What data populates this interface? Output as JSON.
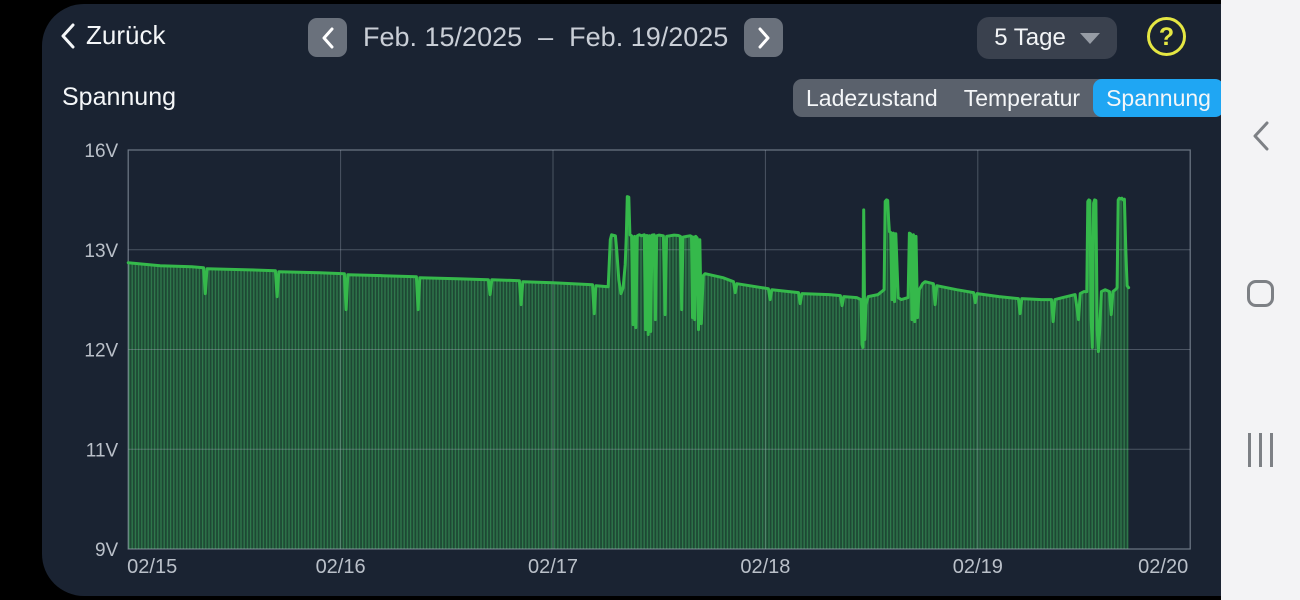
{
  "top_bar": {
    "back_label": "Zurück",
    "date_start": "Feb. 15/2025",
    "date_separator": "–",
    "date_end": "Feb. 19/2025",
    "range_label": "5 Tage",
    "help_glyph": "?"
  },
  "chart_header": {
    "title": "Spannung",
    "tabs": [
      {
        "label": "Ladezustand",
        "active": false
      },
      {
        "label": "Temperatur",
        "active": false
      },
      {
        "label": "Spannung",
        "active": true
      }
    ]
  },
  "colors": {
    "surface": "#1a2332",
    "chart_line": "#35b94b",
    "chart_fill_base": "#1e4834",
    "chart_fill_stripe": "#2f7a4d",
    "grid": "rgba(168,178,192,0.35)",
    "plot_border": "rgba(168,178,192,0.6)",
    "axis_text": "#bac0c9",
    "tab_active": "#1fa6f3",
    "help_yellow": "#e5e743",
    "navbar_bg": "#f3f3f5",
    "navbar_icon": "#7d8085"
  },
  "chart_data": {
    "type": "line",
    "title": "Spannung",
    "unit": "V",
    "x_ticks": [
      "02/15",
      "02/16",
      "02/17",
      "02/18",
      "02/19",
      "02/20"
    ],
    "y_ticks": [
      "16V",
      "13V",
      "12V",
      "11V",
      "9V"
    ],
    "y_tick_values": [
      16,
      13,
      12,
      11,
      9
    ],
    "x_range_days": [
      0,
      5
    ],
    "grid": true,
    "legend": "none",
    "y_gridlines_equally_spaced": true,
    "series": [
      {
        "name": "Spannung",
        "color": "#35b94b",
        "points": [
          [
            0,
            12.87
          ],
          [
            0.05,
            12.86
          ],
          [
            0.15,
            12.84
          ],
          [
            0.3,
            12.83
          ],
          [
            0.355,
            12.82
          ],
          [
            0.363,
            12.56
          ],
          [
            0.371,
            12.81
          ],
          [
            0.55,
            12.8
          ],
          [
            0.693,
            12.79
          ],
          [
            0.701,
            12.53
          ],
          [
            0.709,
            12.78
          ],
          [
            0.9,
            12.77
          ],
          [
            1.018,
            12.76
          ],
          [
            1.026,
            12.4
          ],
          [
            1.034,
            12.75
          ],
          [
            1.2,
            12.74
          ],
          [
            1.357,
            12.73
          ],
          [
            1.365,
            12.4
          ],
          [
            1.373,
            12.72
          ],
          [
            1.55,
            12.71
          ],
          [
            1.696,
            12.7
          ],
          [
            1.704,
            12.55
          ],
          [
            1.712,
            12.7
          ],
          [
            1.842,
            12.69
          ],
          [
            1.85,
            12.45
          ],
          [
            1.858,
            12.68
          ],
          [
            2,
            12.67
          ],
          [
            2.186,
            12.65
          ],
          [
            2.194,
            12.36
          ],
          [
            2.202,
            12.64
          ],
          [
            2.26,
            12.63
          ],
          [
            2.27,
            13.3
          ],
          [
            2.276,
            13.45
          ],
          [
            2.294,
            13.42
          ],
          [
            2.3,
            13
          ],
          [
            2.31,
            12.7
          ],
          [
            2.32,
            12.56
          ],
          [
            2.33,
            12.62
          ],
          [
            2.34,
            12.85
          ],
          [
            2.345,
            13.4
          ],
          [
            2.35,
            14.6
          ],
          [
            2.357,
            14.58
          ],
          [
            2.362,
            13.45
          ],
          [
            2.37,
            13.42
          ],
          [
            2.377,
            12.25
          ],
          [
            2.384,
            13.4
          ],
          [
            2.39,
            12.22
          ],
          [
            2.397,
            13.42
          ],
          [
            2.406,
            13.45
          ],
          [
            2.416,
            13.42
          ],
          [
            2.43,
            13.45
          ],
          [
            2.436,
            12.2
          ],
          [
            2.442,
            13.43
          ],
          [
            2.448,
            12.15
          ],
          [
            2.454,
            13.42
          ],
          [
            2.46,
            12.18
          ],
          [
            2.466,
            13.44
          ],
          [
            2.476,
            13.45
          ],
          [
            2.482,
            12.3
          ],
          [
            2.488,
            13.42
          ],
          [
            2.5,
            13.44
          ],
          [
            2.52,
            13.42
          ],
          [
            2.528,
            12.35
          ],
          [
            2.535,
            13.4
          ],
          [
            2.55,
            13.42
          ],
          [
            2.57,
            13.44
          ],
          [
            2.59,
            13.43
          ],
          [
            2.6,
            13.4
          ],
          [
            2.606,
            12.4
          ],
          [
            2.612,
            13.38
          ],
          [
            2.63,
            13.4
          ],
          [
            2.645,
            13.42
          ],
          [
            2.652,
            13.4
          ],
          [
            2.657,
            12.32
          ],
          [
            2.662,
            13.38
          ],
          [
            2.667,
            12.3
          ],
          [
            2.672,
            13.4
          ],
          [
            2.679,
            13.35
          ],
          [
            2.685,
            12.2
          ],
          [
            2.691,
            13.3
          ],
          [
            2.698,
            12.26
          ],
          [
            2.707,
            12.74
          ],
          [
            2.716,
            12.76
          ],
          [
            2.8,
            12.72
          ],
          [
            2.85,
            12.68
          ],
          [
            2.858,
            12.57
          ],
          [
            2.866,
            12.66
          ],
          [
            3.014,
            12.61
          ],
          [
            3.022,
            12.5
          ],
          [
            3.03,
            12.6
          ],
          [
            3.156,
            12.57
          ],
          [
            3.164,
            12.46
          ],
          [
            3.172,
            12.56
          ],
          [
            3.3,
            12.55
          ],
          [
            3.353,
            12.54
          ],
          [
            3.361,
            12.44
          ],
          [
            3.369,
            12.53
          ],
          [
            3.43,
            12.52
          ],
          [
            3.45,
            12.5
          ],
          [
            3.455,
            12.05
          ],
          [
            3.459,
            12.02
          ],
          [
            3.463,
            14.2
          ],
          [
            3.468,
            12.1
          ],
          [
            3.473,
            12.45
          ],
          [
            3.484,
            12.53
          ],
          [
            3.53,
            12.55
          ],
          [
            3.559,
            12.6
          ],
          [
            3.564,
            14.45
          ],
          [
            3.57,
            14.5
          ],
          [
            3.576,
            14.48
          ],
          [
            3.58,
            13.9
          ],
          [
            3.584,
            13.55
          ],
          [
            3.59,
            13.52
          ],
          [
            3.596,
            12.5
          ],
          [
            3.602,
            13.5
          ],
          [
            3.608,
            12.48
          ],
          [
            3.614,
            13.48
          ],
          [
            3.625,
            12.52
          ],
          [
            3.64,
            12.5
          ],
          [
            3.672,
            12.52
          ],
          [
            3.678,
            13.5
          ],
          [
            3.683,
            13.48
          ],
          [
            3.69,
            12.3
          ],
          [
            3.697,
            13.45
          ],
          [
            3.703,
            12.28
          ],
          [
            3.709,
            13.4
          ],
          [
            3.716,
            12.32
          ],
          [
            3.724,
            12.6
          ],
          [
            3.74,
            12.66
          ],
          [
            3.752,
            12.68
          ],
          [
            3.791,
            12.66
          ],
          [
            3.799,
            12.45
          ],
          [
            3.807,
            12.64
          ],
          [
            3.9,
            12.6
          ],
          [
            3.98,
            12.57
          ],
          [
            3.988,
            12.47
          ],
          [
            3.996,
            12.56
          ],
          [
            4.1,
            12.53
          ],
          [
            4.191,
            12.51
          ],
          [
            4.199,
            12.36
          ],
          [
            4.207,
            12.51
          ],
          [
            4.3,
            12.5
          ],
          [
            4.347,
            12.5
          ],
          [
            4.355,
            12.28
          ],
          [
            4.363,
            12.5
          ],
          [
            4.4,
            12.52
          ],
          [
            4.458,
            12.55
          ],
          [
            4.474,
            12.3
          ],
          [
            4.482,
            12.56
          ],
          [
            4.5,
            12.58
          ],
          [
            4.513,
            12.58
          ],
          [
            4.518,
            14.45
          ],
          [
            4.523,
            14.5
          ],
          [
            4.528,
            14.48
          ],
          [
            4.534,
            12.3
          ],
          [
            4.539,
            12.02
          ],
          [
            4.545,
            14.4
          ],
          [
            4.55,
            14.5
          ],
          [
            4.556,
            14.48
          ],
          [
            4.562,
            12.2
          ],
          [
            4.568,
            11.98
          ],
          [
            4.574,
            12.2
          ],
          [
            4.582,
            12.58
          ],
          [
            4.6,
            12.6
          ],
          [
            4.62,
            12.58
          ],
          [
            4.628,
            12.35
          ],
          [
            4.636,
            12.58
          ],
          [
            4.648,
            12.6
          ],
          [
            4.656,
            12.62
          ],
          [
            4.661,
            14.5
          ],
          [
            4.666,
            14.55
          ],
          [
            4.672,
            14.53
          ],
          [
            4.678,
            14.55
          ],
          [
            4.684,
            14.5
          ],
          [
            4.69,
            14.52
          ],
          [
            4.697,
            13
          ],
          [
            4.703,
            12.64
          ],
          [
            4.71,
            12.62
          ]
        ]
      }
    ]
  },
  "nav_bar": {
    "icons": [
      "back",
      "home",
      "recents"
    ]
  }
}
